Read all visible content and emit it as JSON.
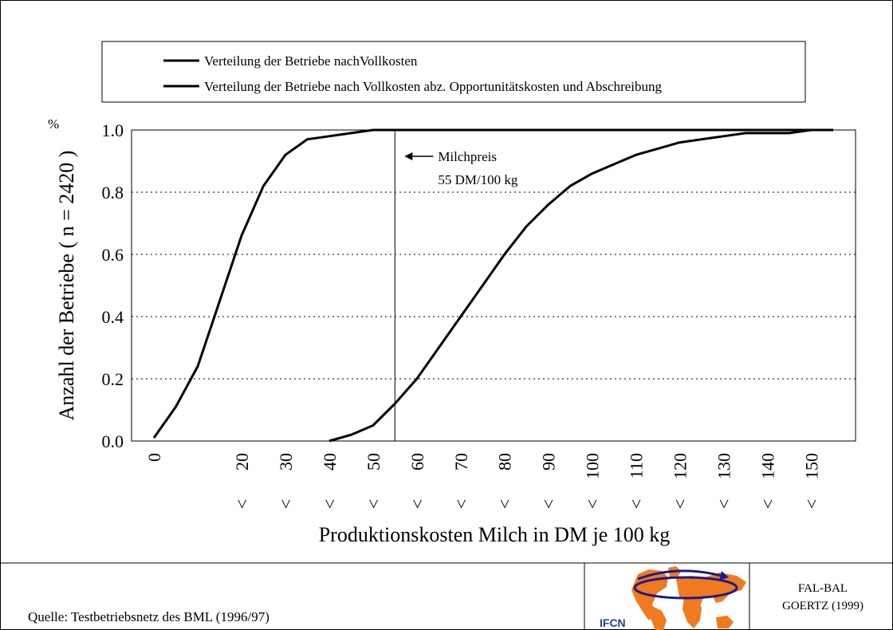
{
  "chart_data": {
    "type": "line",
    "xlabel": "Produktionskosten Milch in DM je 100 kg",
    "ylabel": "Anzahl der Betriebe ( n = 2420 )",
    "y_unit": "%",
    "ylim": [
      0,
      1
    ],
    "yticks": [
      "0.0",
      "0.2",
      "0.4",
      "0.6",
      "0.8",
      "1.0"
    ],
    "xlim": [
      0,
      155
    ],
    "xticks": [
      {
        "value": 0,
        "label": "0",
        "prefix": ""
      },
      {
        "value": 20,
        "label": "20",
        "prefix": "<"
      },
      {
        "value": 30,
        "label": "30",
        "prefix": "<"
      },
      {
        "value": 40,
        "label": "40",
        "prefix": "<"
      },
      {
        "value": 50,
        "label": "50",
        "prefix": "<"
      },
      {
        "value": 60,
        "label": "60",
        "prefix": "<"
      },
      {
        "value": 70,
        "label": "70",
        "prefix": "<"
      },
      {
        "value": 80,
        "label": "80",
        "prefix": "<"
      },
      {
        "value": 90,
        "label": "90",
        "prefix": "<"
      },
      {
        "value": 100,
        "label": "100",
        "prefix": "<"
      },
      {
        "value": 110,
        "label": "110",
        "prefix": "<"
      },
      {
        "value": 120,
        "label": "120",
        "prefix": "<"
      },
      {
        "value": 130,
        "label": "130",
        "prefix": "<"
      },
      {
        "value": 140,
        "label": "140",
        "prefix": "<"
      },
      {
        "value": 150,
        "label": "150",
        "prefix": "<"
      }
    ],
    "grid": "horizontal dotted",
    "legend_position": "top",
    "series": [
      {
        "name": "Verteilung der Betriebe nachVollkosten",
        "x": [
          40,
          45,
          50,
          55,
          60,
          65,
          70,
          75,
          80,
          85,
          90,
          95,
          100,
          105,
          110,
          115,
          120,
          125,
          130,
          135,
          140,
          145,
          150,
          155
        ],
        "y": [
          0.0,
          0.02,
          0.05,
          0.12,
          0.2,
          0.3,
          0.4,
          0.5,
          0.6,
          0.69,
          0.76,
          0.82,
          0.86,
          0.89,
          0.92,
          0.94,
          0.96,
          0.97,
          0.98,
          0.99,
          0.99,
          0.99,
          1.0,
          1.0
        ]
      },
      {
        "name": "Verteilung der Betriebe nach Vollkosten abz. Opportunitätskosten und Abschreibung",
        "x": [
          0,
          5,
          10,
          15,
          20,
          25,
          30,
          35,
          40,
          45,
          50,
          55,
          60,
          65,
          70,
          75,
          80,
          85,
          90,
          95,
          100,
          105,
          110,
          115,
          120,
          125,
          130,
          135,
          140,
          145,
          150,
          155
        ],
        "y": [
          0.01,
          0.11,
          0.24,
          0.45,
          0.66,
          0.82,
          0.92,
          0.97,
          0.98,
          0.99,
          1.0,
          1.0,
          1.0,
          1.0,
          1.0,
          1.0,
          1.0,
          1.0,
          1.0,
          1.0,
          1.0,
          1.0,
          1.0,
          1.0,
          1.0,
          1.0,
          1.0,
          1.0,
          1.0,
          1.0,
          1.0,
          1.0
        ]
      }
    ],
    "annotations": [
      {
        "x": 55,
        "line1": "Milchpreis",
        "line2": "55 DM/100 kg"
      }
    ]
  },
  "footer": {
    "source": "Quelle: Testbetriebsnetz des BML (1996/97)",
    "logo_text": "IFCN",
    "credit_line1": "FAL-BAL",
    "credit_line2": "GOERTZ (1999)"
  },
  "colors": {
    "line": "#000000",
    "logo_land": "#F07A1E",
    "logo_ring": "#1A1A8C",
    "logo_text": "#1A3FA8"
  }
}
